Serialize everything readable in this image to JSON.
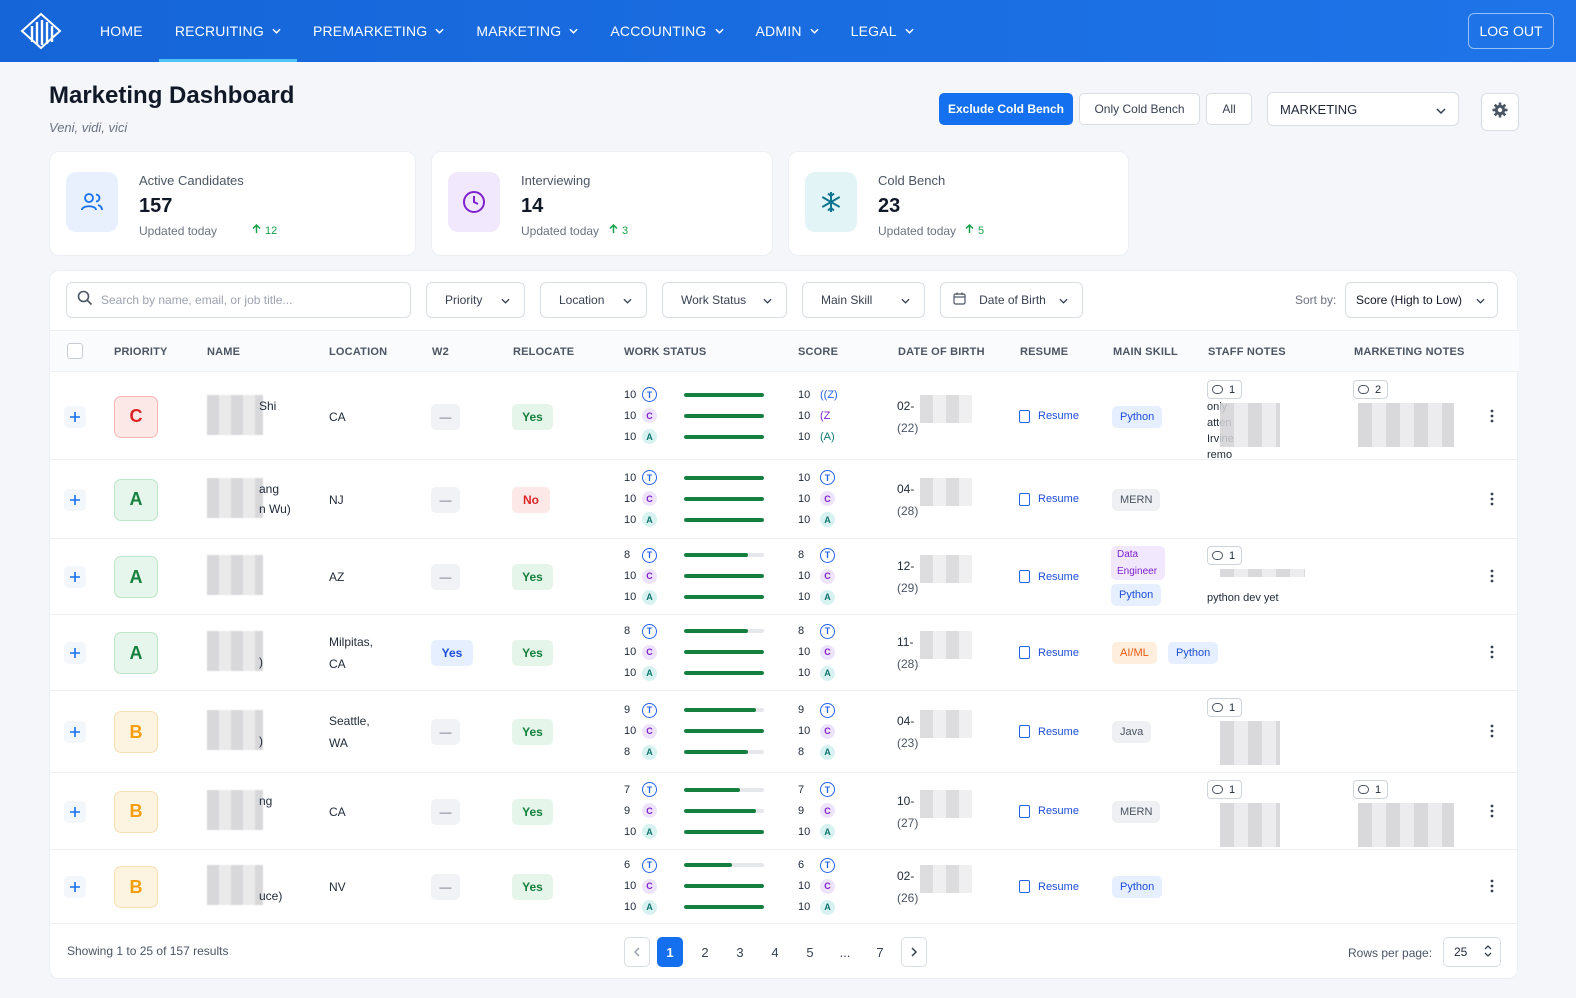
{
  "nav": {
    "items": [
      {
        "label": "HOME",
        "has_menu": false
      },
      {
        "label": "RECRUITING",
        "has_menu": true,
        "active": true
      },
      {
        "label": "PREMARKETING",
        "has_menu": true
      },
      {
        "label": "MARKETING",
        "has_menu": true
      },
      {
        "label": "ACCOUNTING",
        "has_menu": true
      },
      {
        "label": "ADMIN",
        "has_menu": true
      },
      {
        "label": "LEGAL",
        "has_menu": true
      }
    ],
    "logout_label": "LOG OUT"
  },
  "header": {
    "title": "Marketing Dashboard",
    "subtitle": "Veni, vidi, vici",
    "segments": [
      "Exclude Cold Bench",
      "Only Cold Bench",
      "All"
    ],
    "active_segment": "Exclude Cold Bench",
    "department": "MARKETING"
  },
  "stats": [
    {
      "label": "Active Candidates",
      "value": "157",
      "updated": "Updated today",
      "delta": "12",
      "icon": "users-icon",
      "color": "#1570ef"
    },
    {
      "label": "Interviewing",
      "value": "14",
      "updated": "Updated today",
      "delta": "3",
      "icon": "clock-icon",
      "color": "#7e22ce"
    },
    {
      "label": "Cold Bench",
      "value": "23",
      "updated": "Updated today",
      "delta": "5",
      "icon": "snowflake-icon",
      "color": "#0e7490"
    }
  ],
  "filters": {
    "search_placeholder": "Search by name, email, or job title...",
    "priority": "Priority",
    "location": "Location",
    "work_status": "Work Status",
    "main_skill": "Main Skill",
    "dob": "Date of Birth",
    "sort_label": "Sort by:",
    "sort_value": "Score (High to Low)"
  },
  "columns": [
    "PRIORITY",
    "NAME",
    "LOCATION",
    "W2",
    "RELOCATE",
    "WORK STATUS",
    "SCORE",
    "DATE OF BIRTH",
    "RESUME",
    "MAIN SKILL",
    "STAFF NOTES",
    "MARKETING NOTES"
  ],
  "rows": [
    {
      "priority": "C",
      "name_a": "Shi",
      "name_b": "",
      "loc_a": "CA",
      "loc_b": "",
      "w2": "—",
      "relocate": "Yes",
      "ws": [
        10,
        10,
        10
      ],
      "score": [
        10,
        10,
        10
      ],
      "score_icons": [
        "((Z)",
        "(Z",
        "(A)"
      ],
      "dob_a": "02-",
      "dob_b": "(22)",
      "resume": "Resume",
      "skills": [
        "Python"
      ],
      "staff_count": "1",
      "staff_text": [
        "only",
        "atten",
        "Irvine",
        "remo"
      ],
      "mkt_count": "2"
    },
    {
      "priority": "A",
      "name_a": "ang",
      "name_b": "n Wu)",
      "loc_a": "NJ",
      "loc_b": "",
      "w2": "—",
      "relocate": "No",
      "ws": [
        10,
        10,
        10
      ],
      "score": [
        10,
        10,
        10
      ],
      "dob_a": "04-",
      "dob_b": "(28)",
      "resume": "Resume",
      "skills": [
        "MERN"
      ],
      "staff_count": "",
      "mkt_count": ""
    },
    {
      "priority": "A",
      "name_a": "",
      "name_b": "",
      "loc_a": "AZ",
      "loc_b": "",
      "w2": "—",
      "relocate": "Yes",
      "ws": [
        8,
        10,
        10
      ],
      "score": [
        8,
        10,
        10
      ],
      "dob_a": "12-",
      "dob_b": "(29)",
      "resume": "Resume",
      "skills": [
        "Data Engineer",
        "Python"
      ],
      "staff_count": "1",
      "staff_text": [
        "python dev yet"
      ],
      "mkt_count": ""
    },
    {
      "priority": "A",
      "name_a": "",
      "name_b": ")",
      "loc_a": "Milpitas,",
      "loc_b": "CA",
      "w2": "Yes",
      "relocate": "Yes",
      "ws": [
        8,
        10,
        10
      ],
      "score": [
        8,
        10,
        10
      ],
      "dob_a": "11-",
      "dob_b": "(28)",
      "resume": "Resume",
      "skills": [
        "AI/ML",
        "Python"
      ],
      "staff_count": "",
      "mkt_count": ""
    },
    {
      "priority": "B",
      "name_a": "",
      "name_b": ")",
      "loc_a": "Seattle,",
      "loc_b": "WA",
      "w2": "—",
      "relocate": "Yes",
      "ws": [
        9,
        10,
        8
      ],
      "score": [
        9,
        10,
        8
      ],
      "dob_a": "04-",
      "dob_b": "(23)",
      "resume": "Resume",
      "skills": [
        "Java"
      ],
      "staff_count": "1",
      "mkt_count": ""
    },
    {
      "priority": "B",
      "name_a": "ng",
      "name_b": "",
      "loc_a": "CA",
      "loc_b": "",
      "w2": "—",
      "relocate": "Yes",
      "ws": [
        7,
        9,
        10
      ],
      "score": [
        7,
        9,
        10
      ],
      "dob_a": "10-",
      "dob_b": "(27)",
      "resume": "Resume",
      "skills": [
        "MERN"
      ],
      "staff_count": "1",
      "mkt_count": "1"
    },
    {
      "priority": "B",
      "name_a": "",
      "name_b": "uce)",
      "loc_a": "NV",
      "loc_b": "",
      "w2": "—",
      "relocate": "Yes",
      "ws": [
        6,
        10,
        10
      ],
      "score": [
        6,
        10,
        10
      ],
      "dob_a": "02-",
      "dob_b": "(26)",
      "resume": "Resume",
      "skills": [
        "Python"
      ],
      "staff_count": "",
      "mkt_count": ""
    }
  ],
  "work_status_max": 10,
  "footer": {
    "showing": "Showing 1 to 25 of 157 results",
    "pages": [
      "1",
      "2",
      "3",
      "4",
      "5",
      "...",
      "7"
    ],
    "current_page": "1",
    "rows_label": "Rows per page:",
    "rows_value": "25"
  }
}
